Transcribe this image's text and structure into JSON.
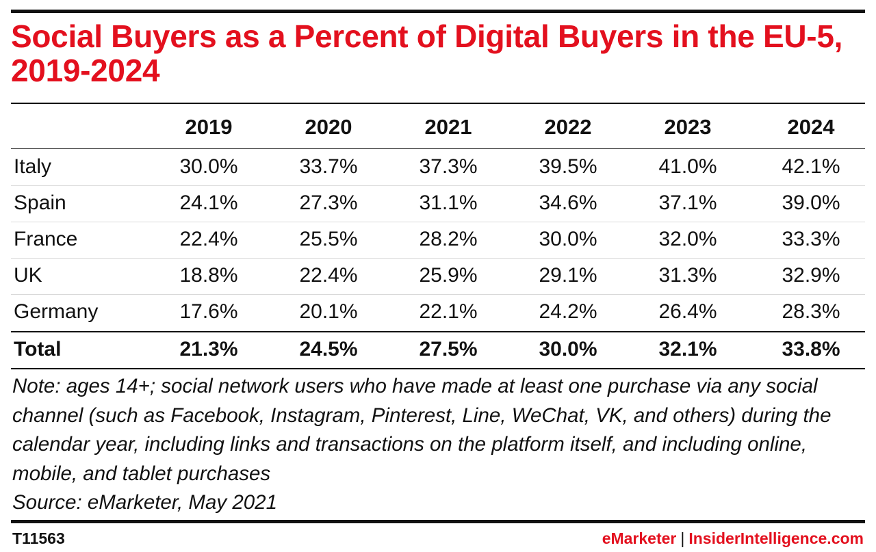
{
  "chart_data": {
    "type": "table",
    "title": "Social Buyers as a Percent of Digital Buyers in the EU-5, 2019-2024",
    "columns": [
      "2019",
      "2020",
      "2021",
      "2022",
      "2023",
      "2024"
    ],
    "rows": [
      {
        "label": "Italy",
        "values": [
          "30.0%",
          "33.7%",
          "37.3%",
          "39.5%",
          "41.0%",
          "42.1%"
        ]
      },
      {
        "label": "Spain",
        "values": [
          "24.1%",
          "27.3%",
          "31.1%",
          "34.6%",
          "37.1%",
          "39.0%"
        ]
      },
      {
        "label": "France",
        "values": [
          "22.4%",
          "25.5%",
          "28.2%",
          "30.0%",
          "32.0%",
          "33.3%"
        ]
      },
      {
        "label": "UK",
        "values": [
          "18.8%",
          "22.4%",
          "25.9%",
          "29.1%",
          "31.3%",
          "32.9%"
        ]
      },
      {
        "label": "Germany",
        "values": [
          "17.6%",
          "20.1%",
          "22.1%",
          "24.2%",
          "26.4%",
          "28.3%"
        ]
      }
    ],
    "total": {
      "label": "Total",
      "values": [
        "21.3%",
        "24.5%",
        "27.5%",
        "30.0%",
        "32.1%",
        "33.8%"
      ]
    },
    "note": "Note: ages 14+; social network users who have made at least one purchase via any social channel (such as Facebook, Instagram, Pinterest, Line, WeChat, VK, and others) during the calendar year, including links and transactions on the platform itself, and including online, mobile, and tablet purchases",
    "source": "Source: eMarketer, May 2021"
  },
  "footer": {
    "chart_id": "T11563",
    "brand_left": "eMarketer",
    "separator": "|",
    "brand_right": "InsiderIntelligence.com"
  },
  "colors": {
    "accent": "#e3101e",
    "text": "#111111",
    "row_divider": "#d9d9d9"
  }
}
